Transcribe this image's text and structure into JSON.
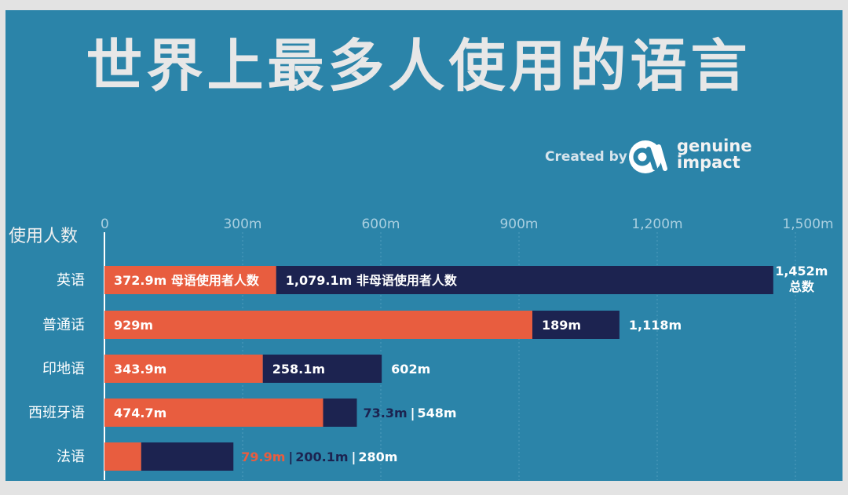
{
  "title": "世界上最多人使用的语言",
  "credit": {
    "created_by": "Created by",
    "brand_line1": "genuine",
    "brand_line2": "impact"
  },
  "colors": {
    "background": "#2b84a9",
    "native": "#e85d3f",
    "non_native": "#1c2350",
    "native_label_on_light": "#e85d3f"
  },
  "chart_data": {
    "type": "bar",
    "orientation": "horizontal",
    "stacked": true,
    "ylabel": "使用人数",
    "xlim": [
      0,
      1500
    ],
    "x_ticks": [
      "0",
      "300m",
      "600m",
      "900m",
      "1,200m",
      "1,500m"
    ],
    "x_tick_values": [
      0,
      300,
      600,
      900,
      1200,
      1500
    ],
    "categories": [
      "英语",
      "普通话",
      "印地语",
      "西班牙语",
      "法语"
    ],
    "series": [
      {
        "name": "母语使用者人数",
        "values": [
          372.9,
          929,
          343.9,
          474.7,
          79.9
        ]
      },
      {
        "name": "非母语使用者人数",
        "values": [
          1079.1,
          189,
          258.1,
          73.3,
          200.1
        ]
      }
    ],
    "totals": [
      1452,
      1118,
      602,
      548,
      280
    ],
    "labels": {
      "native": [
        "372.9m 母语使用者人数",
        "929m",
        "343.9m",
        "474.7m",
        "79.9m"
      ],
      "non_native": [
        "1,079.1m 非母语使用者人数",
        "189m",
        "258.1m",
        "73.3m",
        "200.1m"
      ],
      "total": [
        "1,452m",
        "1,118m",
        "602m",
        "548m",
        "280m"
      ],
      "total_suffix": "总数",
      "separator": "|"
    },
    "grid": true
  }
}
